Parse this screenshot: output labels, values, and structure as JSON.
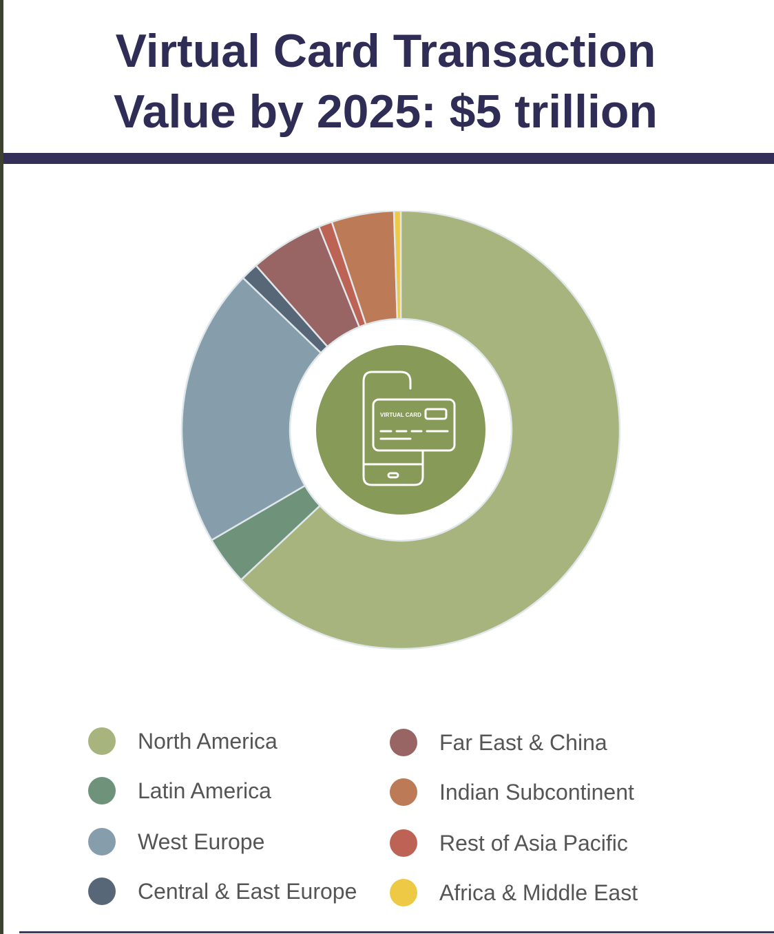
{
  "title": {
    "line1": "Virtual Card Transaction",
    "line2": "Value by 2025: $5 trillion"
  },
  "center_icon": {
    "name": "virtual-card-phone-icon",
    "card_text": "VIRTUAL CARD",
    "circle_color": "#879a57"
  },
  "chart_data": {
    "type": "pie",
    "donut": true,
    "legend_position": "bottom",
    "categories": [
      "North America",
      "Latin America",
      "West Europe",
      "Central & East Europe",
      "Far East & China",
      "Rest of Asia Pacific",
      "Indian Subcontinent",
      "Africa & Middle East"
    ],
    "values": [
      63.0,
      3.6,
      20.6,
      1.3,
      5.4,
      1.0,
      4.6,
      0.5
    ],
    "colors": [
      "#a7b47d",
      "#6f937a",
      "#869eab",
      "#586777",
      "#996564",
      "#bd6355",
      "#bc7a56",
      "#edc945"
    ]
  },
  "legend": {
    "left": [
      {
        "label": "North America",
        "color": "#a7b47d"
      },
      {
        "label": "Latin America",
        "color": "#6f937a"
      },
      {
        "label": "West Europe",
        "color": "#869eab"
      },
      {
        "label": "Central & East Europe",
        "color": "#586777"
      }
    ],
    "right": [
      {
        "label": "Far East & China",
        "color": "#996564"
      },
      {
        "label": "Indian Subcontinent",
        "color": "#bc7a56"
      },
      {
        "label": "Rest of Asia Pacific",
        "color": "#bd6355"
      },
      {
        "label": "Africa & Middle East",
        "color": "#edc945"
      }
    ]
  }
}
